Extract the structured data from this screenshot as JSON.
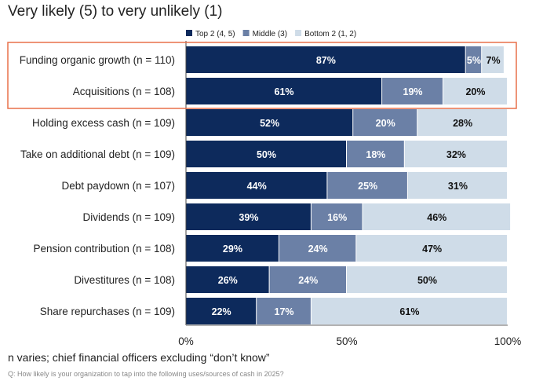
{
  "title": "Very likely (5) to very unlikely (1)",
  "note": "n varies; chief financial officers excluding “don’t know”",
  "question": "Q: How likely is your organization to tap into the following uses/sources of cash in 2025?",
  "chart_data": {
    "type": "bar",
    "orientation": "horizontal",
    "stacked": true,
    "title": "Very likely (5) to very unlikely (1)",
    "xlim": [
      0,
      100
    ],
    "xticks": [
      "0%",
      "50%",
      "100%"
    ],
    "legend_position": "top",
    "categories": [
      "Funding organic growth (n = 110)",
      "Acquisitions (n = 108)",
      "Holding excess cash (n = 109)",
      "Take on additional debt (n = 109)",
      "Debt paydown (n = 107)",
      "Dividends (n = 109)",
      "Pension contribution (n = 108)",
      "Divestitures (n = 108)",
      "Share repurchases (n = 109)"
    ],
    "highlighted_categories": [
      0,
      1
    ],
    "series": [
      {
        "name": "Top 2 (4, 5)",
        "color": "#0d2a5c",
        "label_color": "#ffffff",
        "values": [
          87,
          61,
          52,
          50,
          44,
          39,
          29,
          26,
          22
        ]
      },
      {
        "name": "Middle (3)",
        "color": "#6b80a6",
        "label_color": "#ffffff",
        "values": [
          5,
          19,
          20,
          18,
          25,
          16,
          24,
          24,
          17
        ]
      },
      {
        "name": "Bottom 2 (1, 2)",
        "color": "#cfdce8",
        "label_color": "#111111",
        "values": [
          7,
          20,
          28,
          32,
          31,
          46,
          47,
          50,
          61
        ]
      }
    ],
    "highlight_color": "#e8704a"
  }
}
